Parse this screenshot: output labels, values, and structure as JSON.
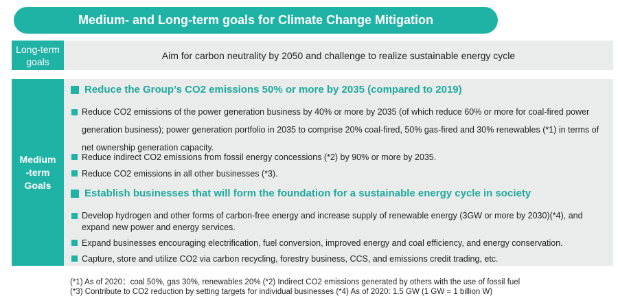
{
  "title": "Medium- and Long-term goals for Climate Change Mitigation",
  "long_term": {
    "label": "Long-term goals",
    "text": "Aim for carbon neutrality by 2050 and challenge to realize sustainable energy cycle"
  },
  "medium_term": {
    "label": "Medium -term Goals",
    "sections": [
      {
        "heading": "Reduce the Group’s CO2 emissions 50% or more by 2035 (compared to 2019)",
        "items": [
          "Reduce CO2 emissions of the power generation business by 40% or more by 2035 (of which reduce 60% or more for coal-fired power generation business); power generation portfolio in 2035 to comprise 20% coal-fired, 50% gas-fired and 30% renewables (*1) in terms of net ownership generation capacity.",
          "Reduce indirect CO2 emissions from fossil energy concessions (*2) by 90% or more by 2035.",
          "Reduce CO2 emissions in all other businesses (*3)."
        ]
      },
      {
        "heading": "Establish businesses that will form the foundation for a sustainable energy cycle in society",
        "items": [
          "Develop hydrogen and other forms of carbon-free energy and increase supply of renewable energy (3GW or more by 2030)(*4), and expand new power and energy services.",
          "Expand businesses encouraging electrification, fuel conversion, improved energy and coal efficiency, and energy conservation.",
          "Capture, store and utilize CO2 via carbon recycling, forestry business, CCS, and emissions credit trading, etc."
        ]
      }
    ]
  },
  "footnotes": [
    "(*1) As of 2020：coal 50%, gas 30%, renewables 20%  (*2) Indirect CO2 emissions generated by others with the use of fossil fuel",
    "(*3) Contribute to CO2 reduction by setting targets for individual businesses (*4) As of 2020: 1.5 GW (1 GW = 1 billion W)"
  ]
}
